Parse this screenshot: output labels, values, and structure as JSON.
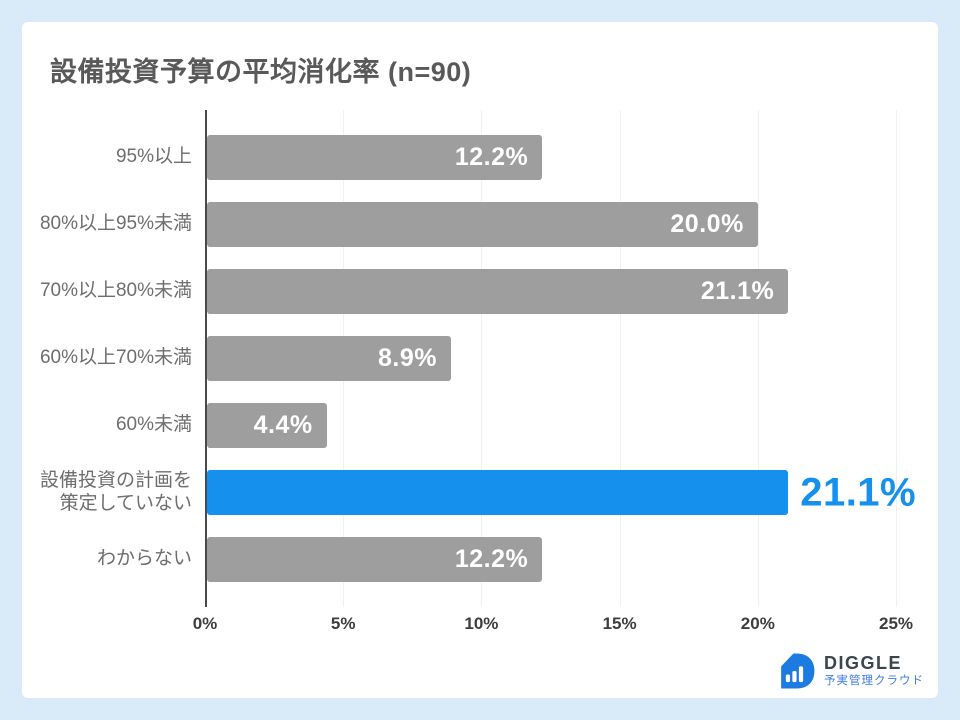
{
  "page": {
    "background_color": "#D9EAF8",
    "card_color": "#FFFFFF"
  },
  "title": "設備投資予算の平均消化率 (n=90)",
  "chart_data": {
    "type": "bar",
    "orientation": "horizontal",
    "title": "設備投資予算の平均消化率 (n=90)",
    "categories": [
      "95%以上",
      "80%以上95%未満",
      "70%以上80%未満",
      "60%以上70%未満",
      "60%未満",
      "設備投資の計画を\n策定していない",
      "わからない"
    ],
    "values": [
      12.2,
      20.0,
      21.1,
      8.9,
      4.4,
      21.1,
      12.2
    ],
    "value_labels": [
      "12.2%",
      "20.0%",
      "21.1%",
      "8.9%",
      "4.4%",
      "21.1%",
      "12.2%"
    ],
    "highlighted_index": 5,
    "x_ticks": [
      "0%",
      "5%",
      "10%",
      "15%",
      "20%",
      "25%"
    ],
    "xlim": [
      0,
      25
    ],
    "grid": true,
    "legend": false,
    "bar_color": "#9E9E9E",
    "highlight_color": "#1590EC",
    "value_label_color_inside": "#FFFFFF",
    "value_label_color_outside": "#1590EC"
  },
  "logo": {
    "name": "DIGGLE",
    "tagline": "予実管理クラウド",
    "brand_color": "#1B7BE0",
    "name_color": "#3A4550",
    "tagline_color": "#3E7DE0"
  }
}
